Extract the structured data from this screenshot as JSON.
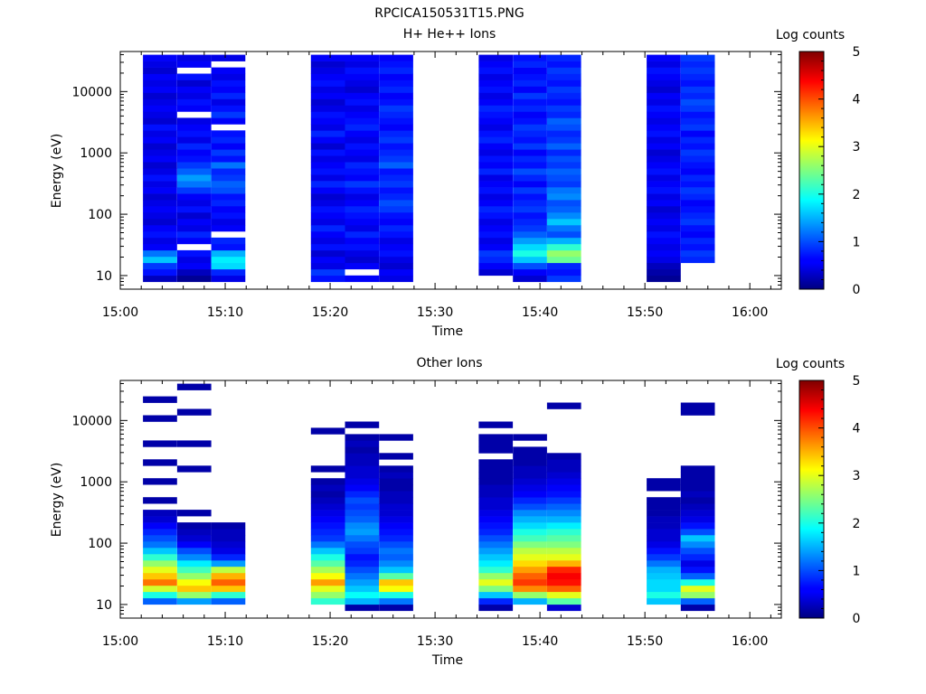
{
  "figure_title": "RPCICA150531T15.PNG",
  "chart_data": [
    {
      "type": "heatmap",
      "title": "H+ He++ Ions",
      "xlabel": "Time",
      "ylabel": "Energy (eV)",
      "yscale": "log",
      "ylim": [
        6,
        45000
      ],
      "xlim": [
        "15:00",
        "16:03"
      ],
      "x_ticks": [
        "15:00",
        "15:10",
        "15:20",
        "15:30",
        "15:40",
        "15:50",
        "16:00"
      ],
      "y_ticks": [
        "10",
        "100",
        "1000",
        "10000"
      ],
      "colorbar": {
        "label": "Log counts",
        "min": 0,
        "max": 5,
        "ticks": [
          "0",
          "1",
          "2",
          "3",
          "4",
          "5"
        ]
      },
      "columns": [
        {
          "start": "15:02:10",
          "end": "15:05:25",
          "levels": [
            0.3,
            0.7,
            0.9,
            1.6,
            1.2,
            0.6,
            0.5,
            0.7,
            0.6,
            0.4,
            0.5,
            0.6,
            0.5,
            0.4,
            0.6,
            0.5,
            0.7,
            0.5,
            0.4,
            0.6,
            0.5,
            0.4,
            0.6,
            0.5,
            0.7,
            0.4,
            0.5,
            0.6,
            0.5,
            0.4,
            0.6,
            0.5,
            0.6,
            0.4,
            0.5,
            0.6
          ]
        },
        {
          "start": "15:05:25",
          "end": "15:08:40",
          "levels": [
            0.1,
            0.3,
            0.6,
            0.5,
            0.7,
            null,
            0.6,
            0.8,
            0.5,
            0.6,
            0.4,
            0.7,
            0.5,
            0.6,
            0.9,
            1.2,
            1.4,
            1.1,
            0.9,
            0.7,
            0.6,
            0.8,
            0.5,
            0.7,
            0.6,
            0.5,
            null,
            0.6,
            0.7,
            0.5,
            0.6,
            0.4,
            0.7,
            null,
            0.6,
            0.5
          ]
        },
        {
          "start": "15:08:40",
          "end": "15:11:55",
          "levels": [
            0.5,
            0.8,
            1.7,
            1.8,
            1.5,
            0.7,
            0.8,
            null,
            0.6,
            0.5,
            0.7,
            0.6,
            0.8,
            0.7,
            1.0,
            1.1,
            0.9,
            0.8,
            1.2,
            0.7,
            0.9,
            0.6,
            0.8,
            0.7,
            null,
            0.6,
            0.9,
            0.7,
            0.5,
            0.8,
            0.6,
            0.7,
            0.5,
            0.6,
            null,
            0.5
          ]
        },
        {
          "start": "15:18:10",
          "end": "15:21:25",
          "levels": [
            0.7,
            0.9,
            0.5,
            0.6,
            0.4,
            0.7,
            0.5,
            0.6,
            0.8,
            0.5,
            0.6,
            0.7,
            0.5,
            0.4,
            0.6,
            0.8,
            0.5,
            0.7,
            0.6,
            0.5,
            0.7,
            0.4,
            0.6,
            0.8,
            0.5,
            0.6,
            0.7,
            0.5,
            0.4,
            0.6,
            0.5,
            0.7,
            0.6,
            0.5,
            0.4,
            0.6
          ]
        },
        {
          "start": "15:21:25",
          "end": "15:24:40",
          "levels": [
            0.6,
            null,
            0.6,
            0.4,
            0.5,
            0.7,
            0.6,
            0.8,
            0.5,
            0.6,
            0.7,
            0.8,
            0.6,
            0.5,
            0.7,
            0.9,
            0.6,
            0.7,
            0.8,
            0.5,
            0.6,
            0.7,
            0.5,
            0.6,
            0.8,
            0.7,
            0.6,
            0.5,
            0.7,
            0.6,
            0.4,
            0.5,
            0.6,
            0.7,
            0.5,
            0.6
          ]
        },
        {
          "start": "15:24:40",
          "end": "15:27:55",
          "levels": [
            0.5,
            0.6,
            0.4,
            0.5,
            0.7,
            0.6,
            0.5,
            0.7,
            0.8,
            0.6,
            0.7,
            0.9,
            1.0,
            0.8,
            0.7,
            0.9,
            0.8,
            0.7,
            1.1,
            0.9,
            0.8,
            0.7,
            0.9,
            0.8,
            0.6,
            0.7,
            0.8,
            0.9,
            0.7,
            0.6,
            0.8,
            0.7,
            0.6,
            0.8,
            0.7,
            0.6
          ]
        },
        {
          "start": "15:34:10",
          "end": "15:37:25",
          "levels": [
            null,
            0.4,
            0.6,
            0.8,
            0.9,
            0.6,
            0.5,
            0.7,
            0.6,
            0.5,
            0.7,
            0.8,
            0.6,
            0.5,
            0.7,
            0.6,
            0.5,
            0.8,
            0.6,
            0.7,
            0.5,
            0.6,
            0.8,
            0.7,
            0.5,
            0.6,
            0.7,
            0.8,
            0.6,
            0.5,
            0.7,
            0.6,
            0.5,
            0.7,
            0.6,
            0.5
          ]
        },
        {
          "start": "15:37:25",
          "end": "15:40:40",
          "levels": [
            0.4,
            0.6,
            1.0,
            1.6,
            2.0,
            1.7,
            1.4,
            1.1,
            0.9,
            0.8,
            0.7,
            0.9,
            0.8,
            0.7,
            0.9,
            0.6,
            0.8,
            1.0,
            0.7,
            0.8,
            0.6,
            0.9,
            0.7,
            0.8,
            0.9,
            0.7,
            0.6,
            0.8,
            0.7,
            0.9,
            0.6,
            0.8,
            0.7,
            0.6,
            0.8,
            0.7
          ]
        },
        {
          "start": "15:40:40",
          "end": "15:43:55",
          "levels": [
            0.9,
            0.7,
            0.8,
            2.4,
            2.6,
            2.1,
            1.5,
            1.0,
            1.2,
            1.6,
            1.3,
            1.1,
            1.0,
            1.3,
            1.2,
            0.9,
            1.0,
            1.1,
            0.9,
            1.0,
            0.8,
            1.1,
            0.9,
            0.8,
            1.0,
            1.1,
            0.8,
            0.9,
            0.7,
            0.8,
            0.9,
            0.7,
            0.8,
            0.9,
            0.7,
            0.8
          ]
        },
        {
          "start": "15:50:10",
          "end": "15:53:25",
          "levels": [
            0.1,
            0.2,
            0.3,
            0.5,
            0.6,
            0.5,
            0.6,
            0.7,
            0.5,
            0.6,
            0.5,
            0.4,
            0.6,
            0.5,
            0.7,
            0.6,
            0.5,
            0.7,
            0.6,
            0.5,
            0.4,
            0.6,
            0.5,
            0.7,
            0.6,
            0.5,
            0.6,
            0.7,
            0.5,
            0.6,
            0.4,
            0.5,
            0.6,
            0.7,
            0.5,
            0.6
          ]
        },
        {
          "start": "15:53:25",
          "end": "15:56:40",
          "levels": [
            null,
            null,
            null,
            0.8,
            0.9,
            0.7,
            0.8,
            0.6,
            0.7,
            0.9,
            0.8,
            0.7,
            0.6,
            0.8,
            0.9,
            0.7,
            0.8,
            0.6,
            0.7,
            0.8,
            0.9,
            0.7,
            0.8,
            0.6,
            0.9,
            0.8,
            0.7,
            0.9,
            1.0,
            0.8,
            0.9,
            0.7,
            0.8,
            0.9,
            0.8,
            0.9
          ]
        }
      ]
    },
    {
      "type": "heatmap",
      "title": "Other Ions",
      "xlabel": "Time",
      "ylabel": "Energy (eV)",
      "yscale": "log",
      "ylim": [
        6,
        45000
      ],
      "xlim": [
        "15:00",
        "16:03"
      ],
      "x_ticks": [
        "15:00",
        "15:10",
        "15:20",
        "15:30",
        "15:40",
        "15:50",
        "16:00"
      ],
      "y_ticks": [
        "10",
        "100",
        "1000",
        "10000"
      ],
      "colorbar": {
        "label": "Log counts",
        "min": 0,
        "max": 5,
        "ticks": [
          "0",
          "1",
          "2",
          "3",
          "4",
          "5"
        ]
      },
      "columns": [
        {
          "start": "15:02:10",
          "end": "15:05:25",
          "levels": [
            null,
            1.1,
            2.0,
            2.9,
            3.8,
            3.4,
            3.0,
            2.6,
            2.1,
            1.6,
            1.2,
            1.0,
            0.8,
            0.6,
            0.4,
            0.3,
            null,
            0.2,
            null,
            null,
            0.2,
            null,
            null,
            0.2,
            null,
            null,
            0.2,
            null,
            null,
            null,
            0.2,
            null,
            null,
            0.2,
            null,
            null
          ]
        },
        {
          "start": "15:05:25",
          "end": "15:08:40",
          "levels": [
            null,
            1.4,
            2.6,
            3.4,
            3.1,
            2.6,
            2.2,
            1.8,
            1.3,
            1.0,
            0.6,
            0.4,
            0.3,
            0.2,
            null,
            0.2,
            null,
            null,
            null,
            null,
            null,
            null,
            0.2,
            null,
            null,
            null,
            0.2,
            null,
            null,
            null,
            null,
            0.2,
            null,
            null,
            null,
            0.2
          ]
        },
        {
          "start": "15:08:40",
          "end": "15:11:55",
          "levels": [
            null,
            1.1,
            2.1,
            3.4,
            3.9,
            3.5,
            2.8,
            1.4,
            0.8,
            0.5,
            0.4,
            0.3,
            0.3,
            0.2,
            null,
            null,
            null,
            null,
            null,
            null,
            null,
            null,
            null,
            null,
            null,
            null,
            null,
            null,
            null,
            null,
            null,
            null,
            null,
            null,
            null,
            null
          ]
        },
        {
          "start": "15:18:10",
          "end": "15:21:25",
          "levels": [
            null,
            2.1,
            2.6,
            3.0,
            3.6,
            3.1,
            2.7,
            2.3,
            2.0,
            1.6,
            1.2,
            0.9,
            0.8,
            0.7,
            0.6,
            0.5,
            0.4,
            0.3,
            0.2,
            0.3,
            0.2,
            null,
            0.2,
            null,
            null,
            null,
            null,
            null,
            0.2,
            null,
            null,
            null,
            null,
            null,
            null,
            null
          ]
        },
        {
          "start": "15:21:25",
          "end": "15:24:40",
          "levels": [
            0.2,
            1.5,
            1.9,
            1.6,
            1.4,
            1.2,
            1.0,
            0.8,
            0.7,
            0.9,
            1.0,
            1.2,
            1.4,
            1.3,
            1.1,
            1.0,
            0.9,
            1.0,
            0.8,
            0.6,
            0.5,
            0.4,
            0.4,
            0.3,
            0.3,
            0.2,
            0.3,
            0.2,
            null,
            0.2,
            null,
            null,
            null,
            null,
            null,
            null
          ]
        },
        {
          "start": "15:24:40",
          "end": "15:27:55",
          "levels": [
            0.2,
            1.2,
            2.0,
            3.1,
            3.4,
            2.3,
            1.6,
            1.3,
            1.1,
            1.2,
            1.0,
            0.8,
            0.7,
            0.6,
            0.5,
            0.4,
            0.4,
            0.3,
            0.3,
            0.2,
            0.2,
            0.3,
            0.2,
            null,
            0.2,
            null,
            null,
            0.2,
            null,
            null,
            null,
            null,
            null,
            null,
            null,
            null
          ]
        },
        {
          "start": "15:34:10",
          "end": "15:37:25",
          "levels": [
            0.2,
            0.8,
            1.6,
            2.5,
            3.0,
            2.6,
            2.1,
            1.8,
            1.6,
            1.4,
            1.2,
            1.0,
            0.8,
            0.7,
            0.6,
            0.5,
            0.4,
            0.4,
            0.3,
            0.3,
            0.2,
            0.2,
            0.2,
            0.2,
            null,
            0.2,
            0.2,
            0.2,
            null,
            0.2,
            null,
            null,
            null,
            null,
            null,
            null
          ]
        },
        {
          "start": "15:37:25",
          "end": "15:40:40",
          "levels": [
            null,
            1.5,
            2.6,
            3.7,
            4.1,
            3.9,
            3.6,
            3.3,
            3.0,
            2.8,
            2.5,
            2.2,
            2.0,
            1.7,
            1.5,
            1.3,
            1.0,
            0.8,
            0.6,
            0.5,
            0.4,
            0.3,
            0.3,
            0.2,
            0.2,
            0.2,
            null,
            0.2,
            null,
            null,
            null,
            null,
            null,
            null,
            null,
            null
          ]
        },
        {
          "start": "15:40:40",
          "end": "15:43:55",
          "levels": [
            0.4,
            2.3,
            3.0,
            3.9,
            4.3,
            4.4,
            4.2,
            3.5,
            3.0,
            2.8,
            2.5,
            2.3,
            2.1,
            1.8,
            1.5,
            1.3,
            1.1,
            0.9,
            0.7,
            0.6,
            0.5,
            0.4,
            0.3,
            0.3,
            0.2,
            null,
            null,
            null,
            null,
            null,
            null,
            null,
            0.2,
            null,
            null,
            null
          ]
        },
        {
          "start": "15:50:10",
          "end": "15:53:25",
          "levels": [
            null,
            1.6,
            2.0,
            1.7,
            1.7,
            1.6,
            1.5,
            1.2,
            0.9,
            0.7,
            0.5,
            0.4,
            0.4,
            0.3,
            0.3,
            0.2,
            0.2,
            0.2,
            null,
            0.2,
            0.2,
            null,
            null,
            null,
            null,
            null,
            null,
            null,
            null,
            null,
            null,
            null,
            null,
            null,
            null,
            null
          ]
        },
        {
          "start": "15:53:25",
          "end": "15:56:40",
          "levels": [
            0.2,
            1.1,
            2.6,
            3.0,
            2.0,
            1.1,
            0.7,
            0.5,
            0.8,
            1.0,
            1.3,
            1.6,
            1.0,
            0.7,
            0.5,
            0.4,
            0.3,
            0.2,
            0.3,
            0.2,
            0.2,
            0.2,
            0.2,
            null,
            null,
            null,
            null,
            null,
            null,
            null,
            null,
            0.2,
            0.2,
            null,
            null,
            null
          ]
        }
      ]
    }
  ]
}
